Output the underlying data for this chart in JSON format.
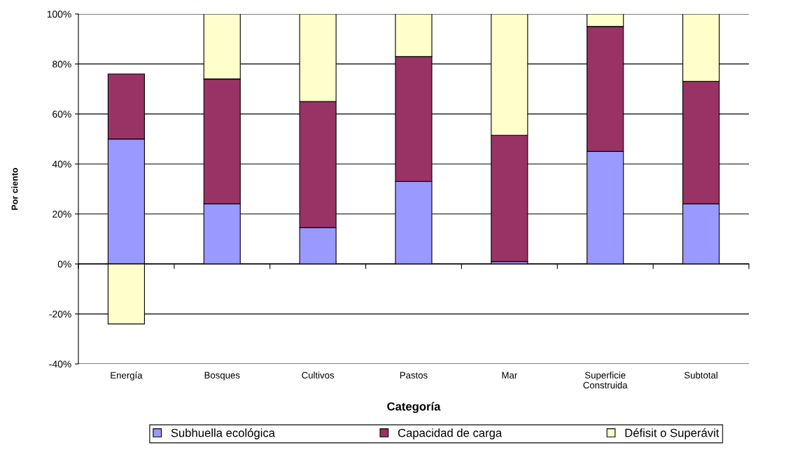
{
  "chart_data": {
    "type": "bar",
    "stacked": true,
    "xlabel": "Categoría",
    "ylabel": "Por ciento",
    "categories": [
      "Energía",
      "Bosques",
      "Cultivos",
      "Pastos",
      "Mar",
      "Superficie\nConstruida",
      "Subtotal"
    ],
    "series": [
      {
        "name": "Subhuella ecológica",
        "color": "#9999ff",
        "values": [
          50,
          24,
          14.5,
          33,
          1,
          45,
          24
        ]
      },
      {
        "name": "Capacidad de carga",
        "color": "#993366",
        "values": [
          26,
          50,
          50.5,
          50,
          50.5,
          50,
          49
        ]
      },
      {
        "name": "Défisit o Superávit",
        "color": "#ffffcc",
        "values": [
          -24,
          26,
          35,
          17,
          48.5,
          5,
          27
        ]
      }
    ],
    "ylim": [
      -40,
      100
    ],
    "yticks": [
      {
        "value": -40,
        "label": "-40%"
      },
      {
        "value": -20,
        "label": "-20%"
      },
      {
        "value": 0,
        "label": "0%"
      },
      {
        "value": 20,
        "label": "20%"
      },
      {
        "value": 40,
        "label": "40%"
      },
      {
        "value": 60,
        "label": "60%"
      },
      {
        "value": 80,
        "label": "80%"
      },
      {
        "value": 100,
        "label": "100%"
      }
    ],
    "grid": "y",
    "legend": "bottom"
  }
}
